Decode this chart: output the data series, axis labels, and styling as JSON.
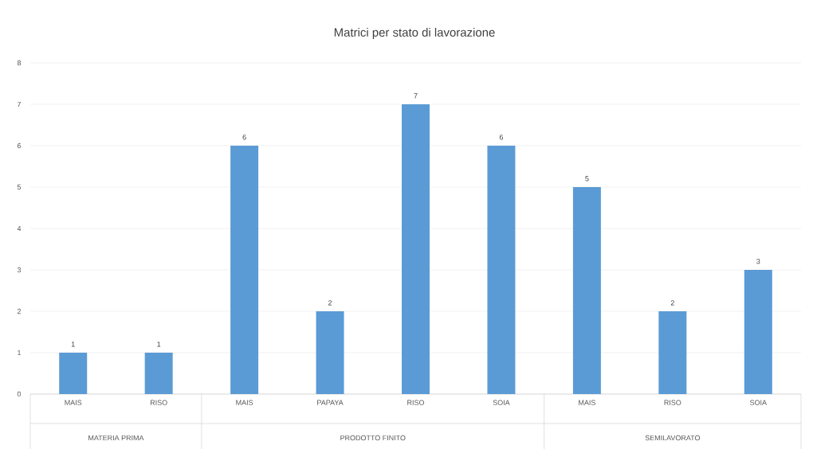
{
  "chart_data": {
    "type": "bar",
    "title": "Matrici per stato di lavorazione",
    "categories": [
      "MAIS",
      "RISO",
      "MAIS",
      "PAPAYA",
      "RISO",
      "SOIA",
      "MAIS",
      "RISO",
      "SOIA"
    ],
    "values": [
      1,
      1,
      6,
      2,
      7,
      6,
      5,
      2,
      3
    ],
    "color": "#5b9bd5",
    "ylim": [
      0,
      8
    ],
    "yticks": [
      0,
      1,
      2,
      3,
      4,
      5,
      6,
      7,
      8
    ],
    "grid": "y",
    "data_labels": true,
    "annotations": [
      "MATERIA PRIMA",
      "PRODOTTO FINITO",
      "SEMILAVORATO"
    ]
  }
}
